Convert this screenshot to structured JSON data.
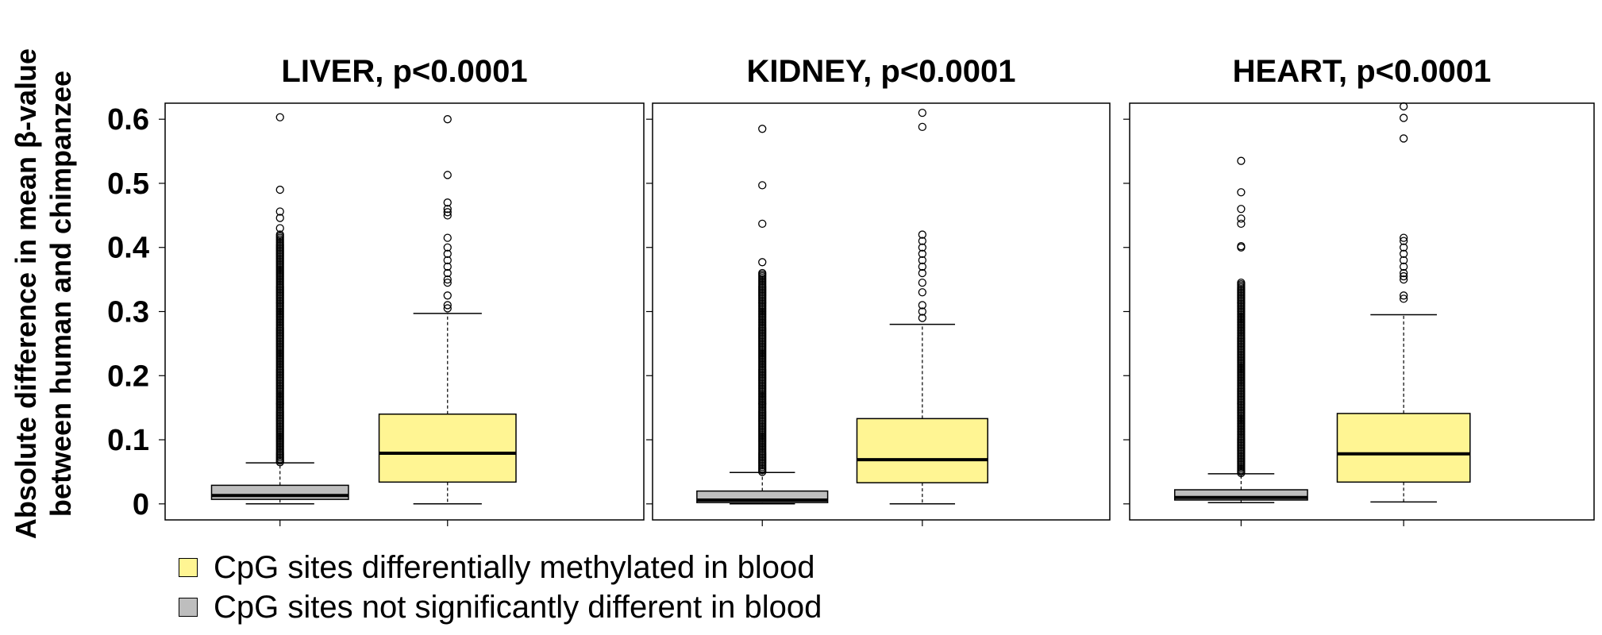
{
  "y_axis_label_lines": [
    "Absolute difference in mean β-value",
    "between human and chimpanzee"
  ],
  "colors": {
    "diff": "#FFF593",
    "notsig": "#BEBEBE"
  },
  "legend": [
    {
      "label": "CpG sites differentially methylated in blood",
      "color": "#FFF593"
    },
    {
      "label": "CpG sites not significantly different in blood",
      "color": "#BEBEBE"
    }
  ],
  "chart_data": [
    {
      "type": "box",
      "title": "LIVER, p<0.0001",
      "ylim": [
        -0.025,
        0.625
      ],
      "yticks": [
        "0",
        "0.1",
        "0.2",
        "0.3",
        "0.4",
        "0.5",
        "0.6"
      ],
      "boxes": [
        {
          "group": "not significantly different",
          "color": "#BEBEBE",
          "whisker_low": 0.0,
          "q1": 0.007,
          "median": 0.013,
          "q3": 0.029,
          "whisker_high": 0.064,
          "outlier_range": [
            0.065,
            0.42
          ],
          "outliers": [
            0.43,
            0.446,
            0.456,
            0.49,
            0.603
          ]
        },
        {
          "group": "differentially methylated",
          "color": "#FFF593",
          "whisker_low": 0.0,
          "q1": 0.034,
          "median": 0.079,
          "q3": 0.14,
          "whisker_high": 0.297,
          "outliers": [
            0.305,
            0.31,
            0.325,
            0.345,
            0.35,
            0.36,
            0.37,
            0.38,
            0.39,
            0.4,
            0.415,
            0.45,
            0.455,
            0.46,
            0.47,
            0.513,
            0.6
          ]
        }
      ]
    },
    {
      "type": "box",
      "title": "KIDNEY, p<0.0001",
      "ylim": [
        -0.025,
        0.625
      ],
      "yticks": [
        "0",
        "0.1",
        "0.2",
        "0.3",
        "0.4",
        "0.5",
        "0.6"
      ],
      "boxes": [
        {
          "group": "not significantly different",
          "color": "#BEBEBE",
          "whisker_low": 0.0,
          "q1": 0.002,
          "median": 0.006,
          "q3": 0.02,
          "whisker_high": 0.049,
          "outlier_range": [
            0.05,
            0.36
          ],
          "outliers": [
            0.377,
            0.437,
            0.497,
            0.585
          ]
        },
        {
          "group": "differentially methylated",
          "color": "#FFF593",
          "whisker_low": 0.0,
          "q1": 0.033,
          "median": 0.069,
          "q3": 0.133,
          "whisker_high": 0.28,
          "outliers": [
            0.29,
            0.3,
            0.31,
            0.33,
            0.345,
            0.36,
            0.37,
            0.38,
            0.39,
            0.4,
            0.41,
            0.42,
            0.588,
            0.61
          ]
        }
      ]
    },
    {
      "type": "box",
      "title": "HEART, p<0.0001",
      "ylim": [
        -0.025,
        0.625
      ],
      "yticks": [
        "0",
        "0.1",
        "0.2",
        "0.3",
        "0.4",
        "0.5",
        "0.6"
      ],
      "boxes": [
        {
          "group": "not significantly different",
          "color": "#BEBEBE",
          "whisker_low": 0.002,
          "q1": 0.006,
          "median": 0.01,
          "q3": 0.022,
          "whisker_high": 0.047,
          "outlier_range": [
            0.048,
            0.345
          ],
          "outliers": [
            0.4,
            0.402,
            0.437,
            0.445,
            0.46,
            0.486,
            0.535
          ]
        },
        {
          "group": "differentially methylated",
          "color": "#FFF593",
          "whisker_low": 0.003,
          "q1": 0.034,
          "median": 0.078,
          "q3": 0.141,
          "whisker_high": 0.295,
          "outliers": [
            0.32,
            0.325,
            0.35,
            0.355,
            0.36,
            0.37,
            0.38,
            0.39,
            0.4,
            0.41,
            0.415,
            0.57,
            0.602,
            0.62
          ]
        }
      ]
    }
  ]
}
